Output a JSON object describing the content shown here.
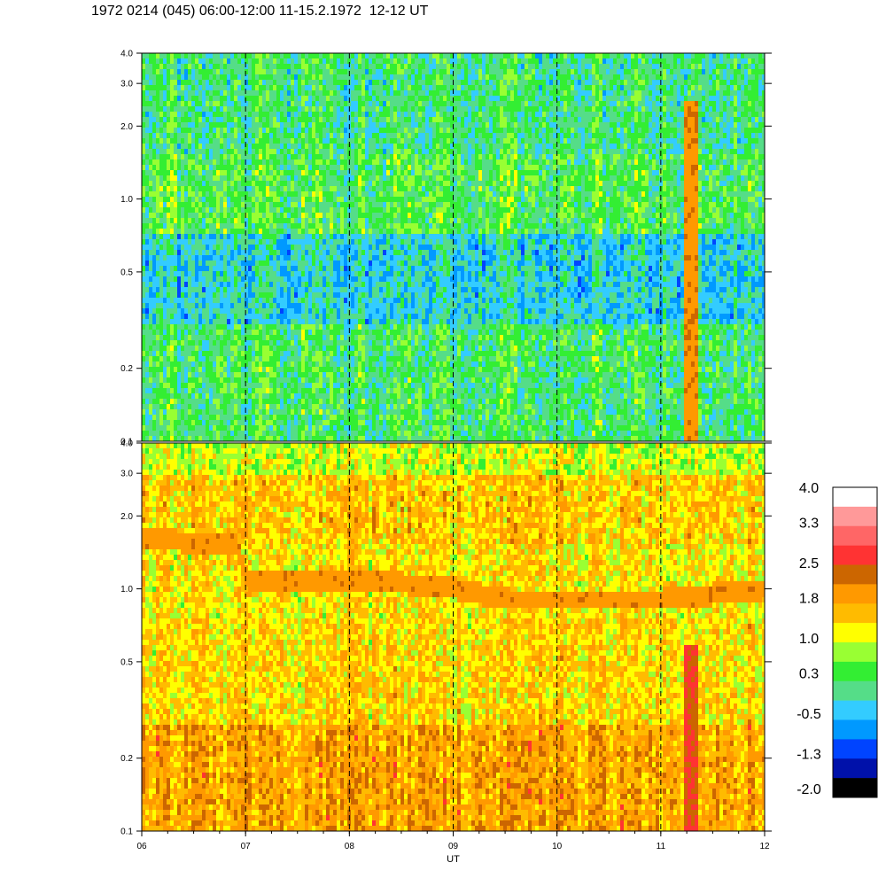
{
  "title": "1972 0214 (045) 06:00-12:00 11-15.2.1972  12-12 UT",
  "chart_data": [
    {
      "type": "heatmap",
      "panel": "upper",
      "x_range": [
        "06",
        "12"
      ],
      "y_log_scale": true,
      "ylim": [
        0.1,
        4.0
      ],
      "yticks": [
        "0.1",
        "0.2",
        "0.5",
        "1.0",
        "2.0",
        "3.0",
        "4.0"
      ],
      "ytick_values": [
        0.1,
        0.2,
        0.5,
        1.0,
        2.0,
        3.0,
        4.0
      ],
      "hour_markers": [
        7,
        8,
        9,
        10,
        11
      ],
      "bands": [
        {
          "from": 0.1,
          "to": 0.3,
          "level": 0.3
        },
        {
          "from": 0.3,
          "to": 0.7,
          "level": -0.2
        },
        {
          "from": 0.7,
          "to": 1.5,
          "level": 0.4
        },
        {
          "from": 1.5,
          "to": 4.0,
          "level": 0.2
        }
      ],
      "features": [
        {
          "x_from": 11.2,
          "x_to": 11.35,
          "y_from": 0.1,
          "y_to": 2.5,
          "level": 2.0
        }
      ]
    },
    {
      "type": "heatmap",
      "panel": "lower",
      "xlabel": "UT",
      "xticks": [
        "06",
        "07",
        "08",
        "09",
        "10",
        "11",
        "12"
      ],
      "x_range": [
        6,
        12
      ],
      "y_log_scale": true,
      "ylim": [
        0.1,
        4.0
      ],
      "yticks": [
        "0.1",
        "0.2",
        "0.5",
        "1.0",
        "2.0",
        "3.0",
        "4.0"
      ],
      "ytick_values": [
        0.1,
        0.2,
        0.5,
        1.0,
        2.0,
        3.0,
        4.0
      ],
      "hour_markers": [
        7,
        8,
        9,
        10,
        11
      ],
      "bands": [
        {
          "from": 0.1,
          "to": 0.28,
          "level": 1.8
        },
        {
          "from": 0.28,
          "to": 0.75,
          "level": 1.4
        },
        {
          "from": 0.75,
          "to": 1.5,
          "level": 1.3
        },
        {
          "from": 1.5,
          "to": 3.0,
          "level": 1.5
        },
        {
          "from": 3.0,
          "to": 4.0,
          "level": 1.0
        }
      ],
      "ridge": [
        {
          "x": 6.0,
          "y": 1.6
        },
        {
          "x": 6.6,
          "y": 1.55
        },
        {
          "x": 6.9,
          "y": 1.5
        },
        {
          "x": 7.0,
          "y": 1.1
        },
        {
          "x": 8.0,
          "y": 1.1
        },
        {
          "x": 9.0,
          "y": 1.0
        },
        {
          "x": 9.5,
          "y": 0.9
        },
        {
          "x": 10.0,
          "y": 0.9
        },
        {
          "x": 11.0,
          "y": 0.9
        },
        {
          "x": 12.0,
          "y": 1.0
        }
      ],
      "features": [
        {
          "x_from": 11.2,
          "x_to": 11.35,
          "y_from": 0.1,
          "y_to": 0.6,
          "level": 2.5
        }
      ]
    }
  ],
  "colorbar": {
    "labels": [
      "4.0",
      "3.3",
      "2.5",
      "1.8",
      "1.0",
      "0.3",
      "-0.5",
      "-1.3",
      "-2.0"
    ],
    "label_values": [
      4.0,
      3.3,
      2.5,
      1.8,
      1.0,
      0.3,
      -0.5,
      -1.3,
      -2.0
    ],
    "colors_top_to_bottom": [
      "#ffffff",
      "#ff9999",
      "#ff6666",
      "#ff3333",
      "#cc6600",
      "#ff9900",
      "#ffbb00",
      "#ffff00",
      "#99ff33",
      "#33ee33",
      "#55dd88",
      "#33ccff",
      "#0099ff",
      "#0044ff",
      "#0011aa",
      "#000000"
    ]
  }
}
